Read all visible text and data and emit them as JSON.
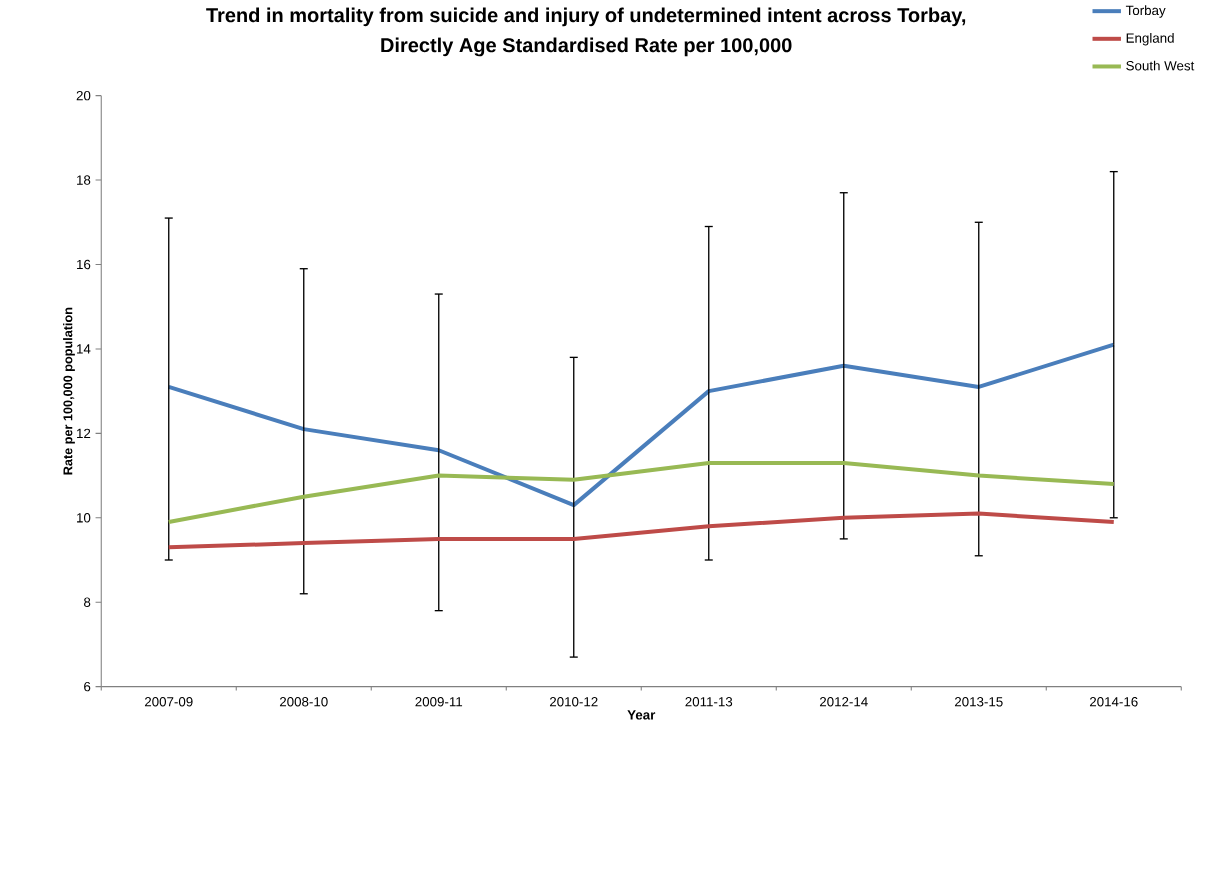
{
  "chart_data": {
    "type": "line",
    "title": "Trend in mortality from suicide and injury of undetermined intent across Torbay,\nDirectly Age Standardised Rate per 100,000",
    "xlabel": "Year",
    "ylabel": "Rate per 100,000 population",
    "categories": [
      "2007-09",
      "2008-10",
      "2009-11",
      "2010-12",
      "2011-13",
      "2012-14",
      "2013-15",
      "2014-16"
    ],
    "series": [
      {
        "name": "Torbay",
        "color": "#4a7ebb",
        "values": [
          13.1,
          12.1,
          11.6,
          10.3,
          13.0,
          13.6,
          13.1,
          14.1
        ],
        "errors": [
          [
            9.0,
            17.1
          ],
          [
            8.2,
            15.9
          ],
          [
            7.8,
            15.3
          ],
          [
            6.7,
            13.8
          ],
          [
            9.0,
            16.9
          ],
          [
            9.5,
            17.7
          ],
          [
            9.1,
            17.0
          ],
          [
            10.0,
            18.2
          ]
        ]
      },
      {
        "name": "England",
        "color": "#be4b48",
        "values": [
          9.3,
          9.4,
          9.5,
          9.5,
          9.8,
          10.0,
          10.1,
          9.9
        ]
      },
      {
        "name": "South West",
        "color": "#98b954",
        "values": [
          9.9,
          10.5,
          11.0,
          10.9,
          11.3,
          11.3,
          11.0,
          10.8
        ]
      }
    ],
    "ylim": [
      6,
      20
    ],
    "yticks": [
      6,
      8,
      10,
      12,
      14,
      16,
      18,
      20
    ],
    "grid": false,
    "legend": "top right",
    "marker": "none",
    "line_style": "solid"
  }
}
